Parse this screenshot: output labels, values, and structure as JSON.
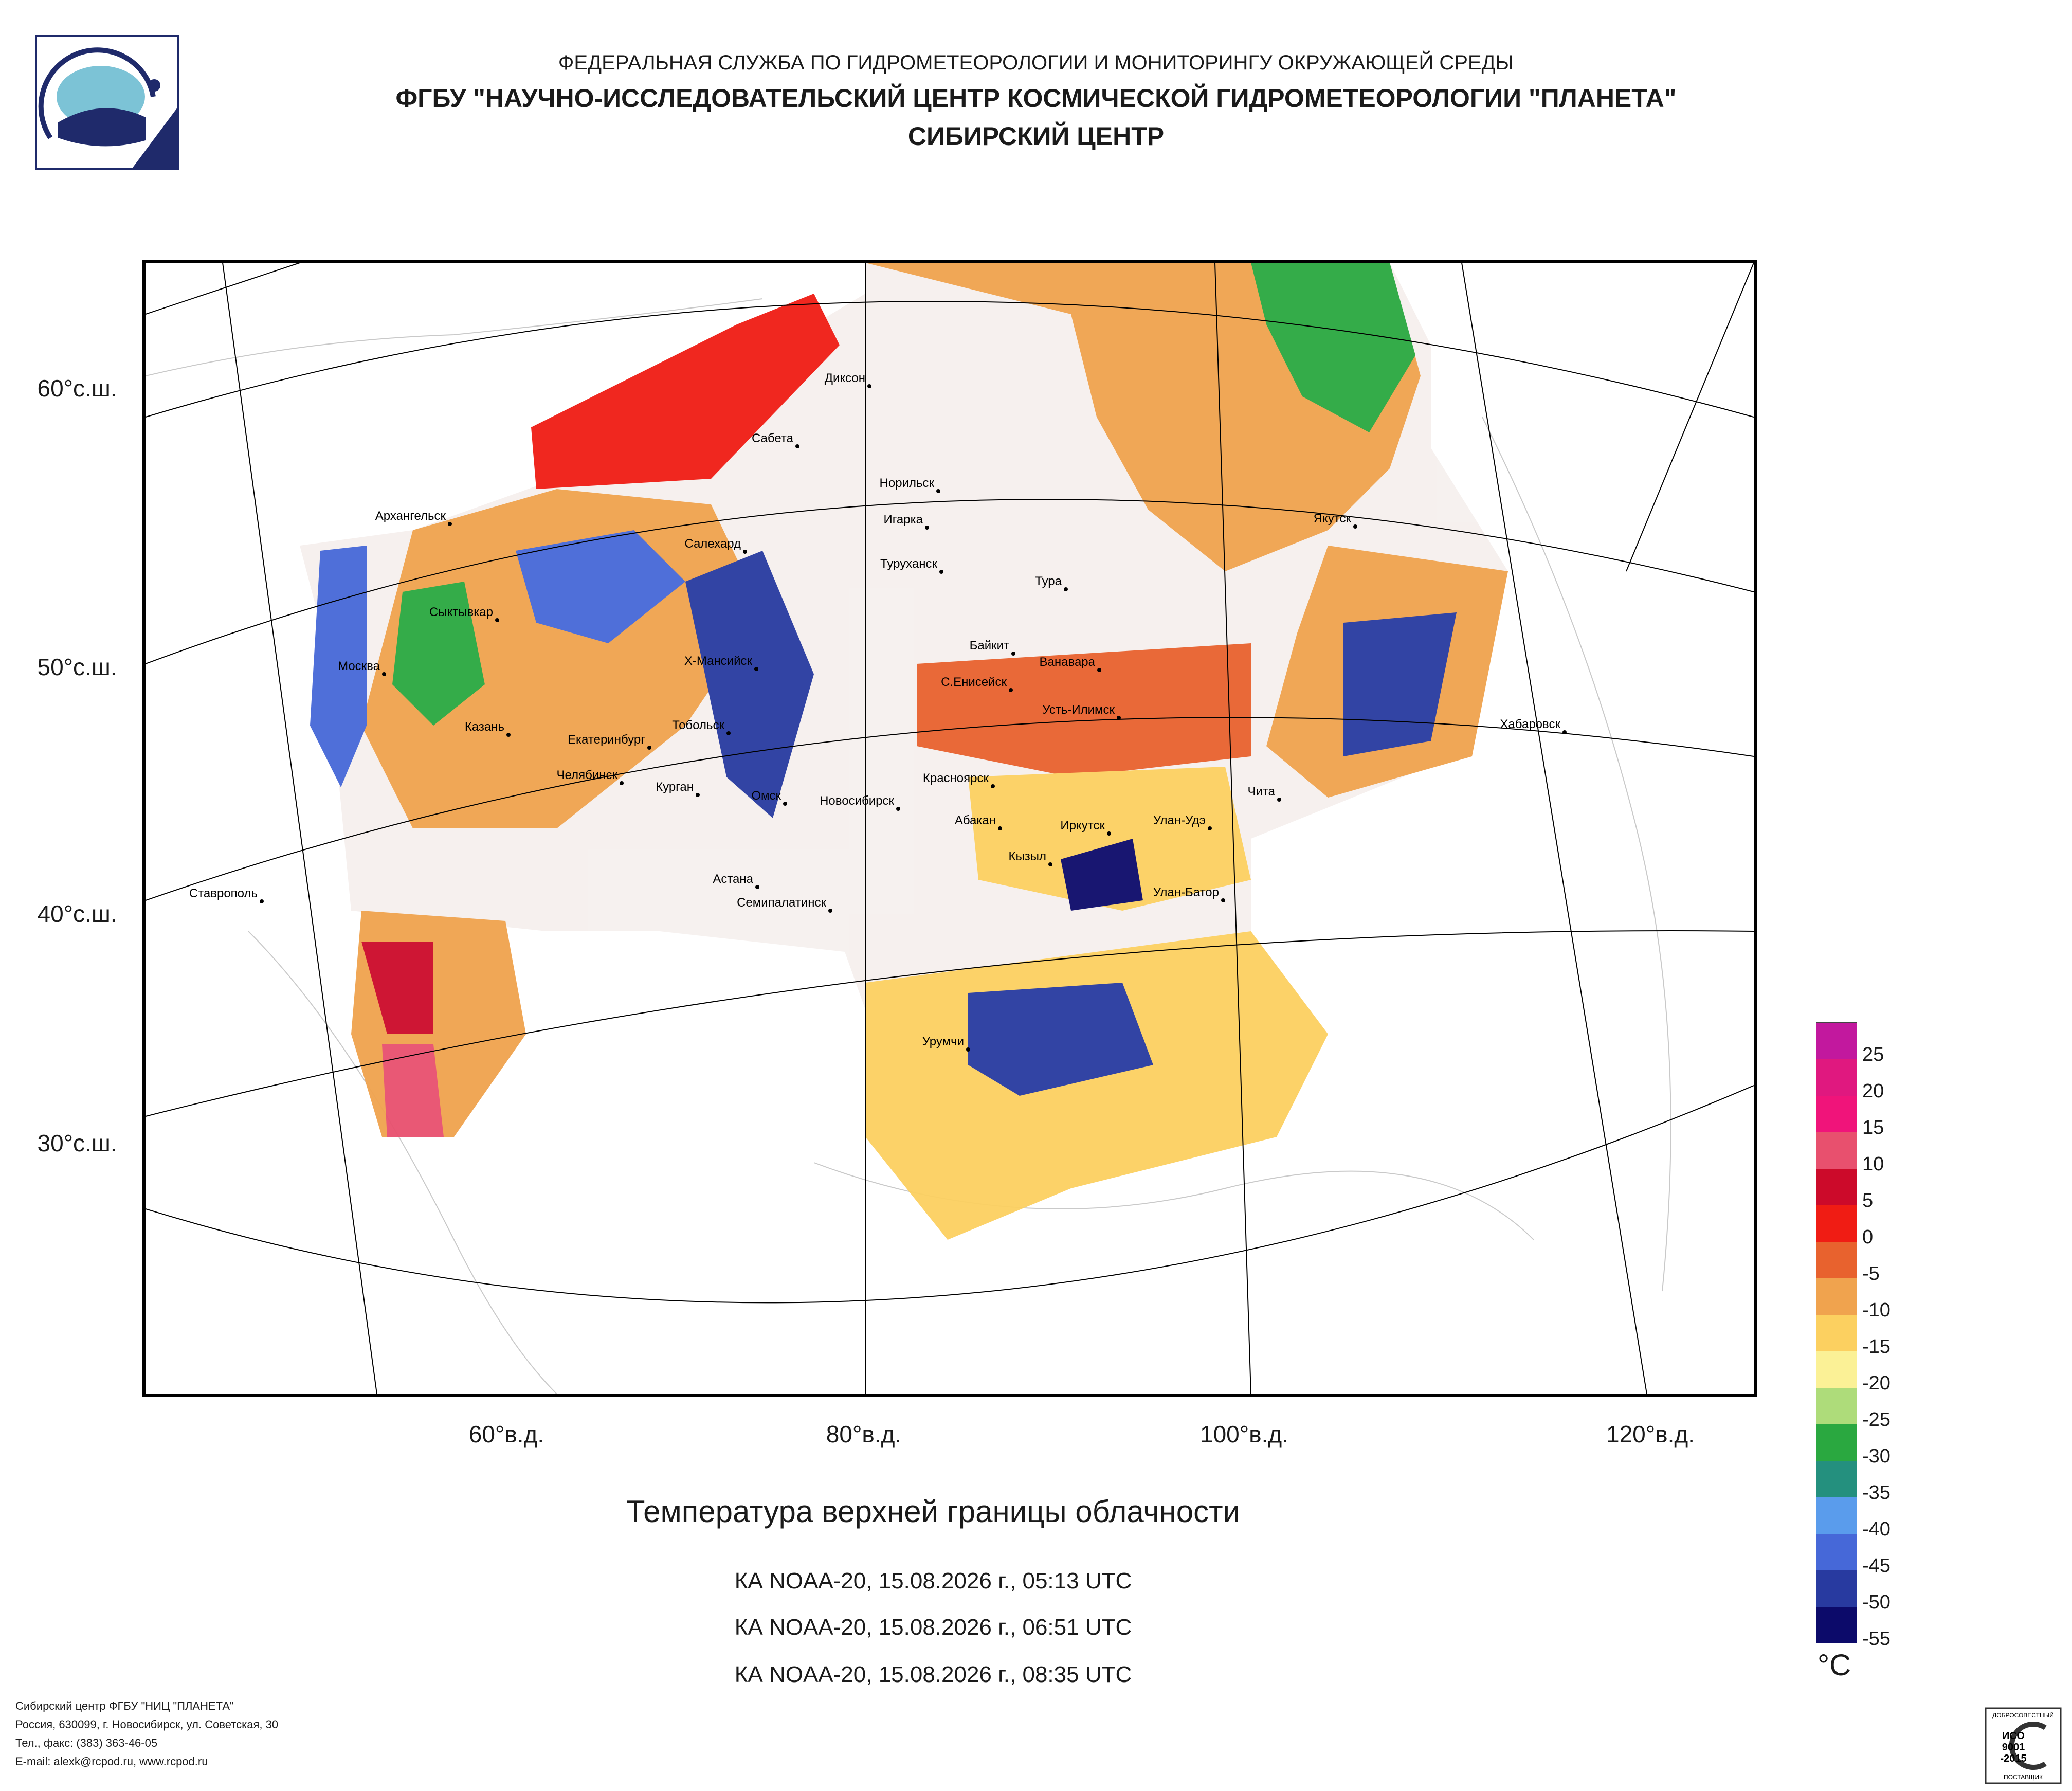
{
  "header": {
    "line1": "ФЕДЕРАЛЬНАЯ СЛУЖБА ПО ГИДРОМЕТЕОРОЛОГИИ И МОНИТОРИНГУ ОКРУЖАЮЩЕЙ СРЕДЫ",
    "line2": "ФГБУ \"НАУЧНО-ИССЛЕДОВАТЕЛЬСКИЙ ЦЕНТР КОСМИЧЕСКОЙ ГИДРОМЕТЕОРОЛОГИИ \"ПЛАНЕТА\"",
    "line3": "СИБИРСКИЙ ЦЕНТР"
  },
  "map": {
    "lat_labels": [
      "60°с.ш.",
      "50°с.ш.",
      "40°с.ш.",
      "30°с.ш."
    ],
    "lon_labels": [
      "60°в.д.",
      "80°в.д.",
      "100°в.д.",
      "120°в.д."
    ],
    "cities": [
      "Диксон",
      "Сабета",
      "Норильск",
      "Игарка",
      "Туруханск",
      "Тура",
      "Якутск",
      "Архангельск",
      "Салехард",
      "Сыктывкар",
      "Москва",
      "Х-Мансийск",
      "Байкит",
      "Ванавара",
      "С.Енисейск",
      "Усть-Илимск",
      "Хабаровск",
      "Казань",
      "Екатеринбург",
      "Тобольск",
      "Челябинск",
      "Курган",
      "Омск",
      "Новосибирск",
      "Красноярск",
      "Абакан",
      "Иркутск",
      "Улан-Удэ",
      "Чита",
      "Кызыл",
      "Улан-Батор",
      "Астана",
      "Семипалатинск",
      "Ставрополь",
      "Урумчи"
    ]
  },
  "title": "Температура верхней границы облачности",
  "passes": [
    "КА NOAA-20, 15.08.2026 г., 05:13 UTC",
    "КА NOAA-20, 15.08.2026 г., 06:51 UTC",
    "КА NOAA-20, 15.08.2026 г., 08:35 UTC"
  ],
  "legend": {
    "unit": "°C",
    "ticks": [
      "25",
      "20",
      "15",
      "10",
      "5",
      "0",
      "-5",
      "-10",
      "-15",
      "-20",
      "-25",
      "-30",
      "-35",
      "-40",
      "-45",
      "-50",
      "-55"
    ],
    "colors": [
      "#c2189e",
      "#e0187f",
      "#f0147a",
      "#e8506e",
      "#cc0a2a",
      "#f01c14",
      "#e8622e",
      "#f0a34e",
      "#fcd060",
      "#fbf196",
      "#aedc7a",
      "#2aa840",
      "#24907e",
      "#5a9cec",
      "#4668d8",
      "#283aa0",
      "#0c0a6a"
    ]
  },
  "footer": {
    "lines": [
      "Сибирский центр ФГБУ \"НИЦ \"ПЛАНЕТА\"",
      "Россия, 630099, г. Новосибирск, ул. Советская, 30",
      "Тел., факс: (383) 363-46-05",
      "E-mail: alexk@rcpod.ru, www.rcpod.ru"
    ]
  },
  "iso_badge": {
    "top": "ДОБРОСОВЕСТНЫЙ",
    "l1": "ИСО",
    "l2": "9001",
    "l3": "-2015",
    "bottom": "ПОСТАВЩИК"
  }
}
